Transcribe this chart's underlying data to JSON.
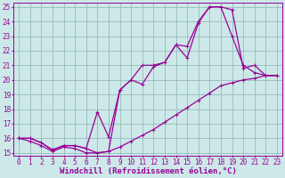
{
  "xlabel": "Windchill (Refroidissement éolien,°C)",
  "background_color": "#cce8e8",
  "line_color": "#990099",
  "grid_color": "#99bbbb",
  "xlim": [
    -0.5,
    23.5
  ],
  "ylim": [
    14.8,
    25.3
  ],
  "xticks": [
    0,
    1,
    2,
    3,
    4,
    5,
    6,
    7,
    8,
    9,
    10,
    11,
    12,
    13,
    14,
    15,
    16,
    17,
    18,
    19,
    20,
    21,
    22,
    23
  ],
  "yticks": [
    15,
    16,
    17,
    18,
    19,
    20,
    21,
    22,
    23,
    24,
    25
  ],
  "line1_x": [
    0,
    1,
    2,
    3,
    4,
    5,
    6,
    7,
    8,
    9,
    10,
    11,
    12,
    13,
    14,
    15,
    16,
    17,
    18,
    19,
    20,
    21,
    22,
    23
  ],
  "line1_y": [
    16.0,
    16.0,
    15.7,
    15.2,
    15.5,
    15.5,
    15.3,
    15.0,
    15.1,
    19.3,
    20.0,
    19.7,
    20.9,
    21.2,
    22.4,
    21.5,
    23.9,
    25.0,
    25.0,
    24.8,
    20.8,
    21.0,
    20.3,
    20.3
  ],
  "line2_x": [
    0,
    1,
    2,
    3,
    4,
    5,
    6,
    7,
    8,
    9,
    10,
    11,
    12,
    13,
    14,
    15,
    16,
    17,
    18,
    19,
    20,
    21,
    22,
    23
  ],
  "line2_y": [
    16.0,
    16.0,
    15.7,
    15.2,
    15.5,
    15.5,
    15.3,
    17.8,
    16.1,
    19.3,
    20.0,
    21.0,
    21.0,
    21.2,
    22.4,
    22.3,
    24.0,
    25.0,
    25.0,
    23.0,
    21.0,
    20.5,
    20.3,
    20.3
  ],
  "line3_x": [
    0,
    1,
    2,
    3,
    4,
    5,
    6,
    7,
    8,
    9,
    10,
    11,
    12,
    13,
    14,
    15,
    16,
    17,
    18,
    19,
    20,
    21,
    22,
    23
  ],
  "line3_y": [
    16.0,
    15.8,
    15.5,
    15.1,
    15.4,
    15.3,
    15.0,
    15.0,
    15.1,
    15.4,
    15.8,
    16.2,
    16.6,
    17.1,
    17.6,
    18.1,
    18.6,
    19.1,
    19.6,
    19.8,
    20.0,
    20.1,
    20.3,
    20.3
  ],
  "tick_fontsize": 5.5,
  "xlabel_fontsize": 6.5,
  "marker": "+"
}
